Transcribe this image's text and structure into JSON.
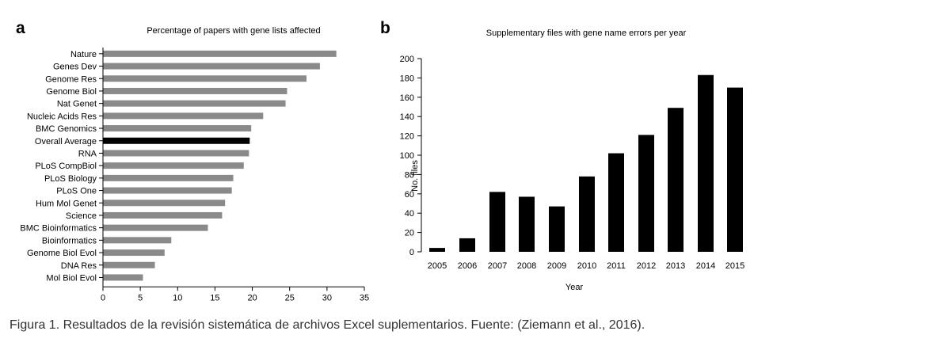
{
  "panel_labels": {
    "a": "a",
    "b": "b"
  },
  "caption": "Figura 1. Resultados de la revisión sistemática de archivos Excel suplementarios. Fuente: (Ziemann et al., 2016).",
  "colors": {
    "gray_bar": "#8a8a8a",
    "black_bar": "#000000",
    "caption_text": "#333333"
  },
  "chart_data": [
    {
      "type": "bar",
      "orientation": "horizontal",
      "title": "Percentage of papers with gene lists affected",
      "xlabel": "",
      "ylabel": "",
      "xlim": [
        0,
        35
      ],
      "xticks": [
        "0",
        "5",
        "10",
        "15",
        "20",
        "25",
        "30",
        "35"
      ],
      "categories": [
        "Nature",
        "Genes Dev",
        "Genome Res",
        "Genome Biol",
        "Nat Genet",
        "Nucleic Acids Res",
        "BMC Genomics",
        "Overall Average",
        "RNA",
        "PLoS CompBiol",
        "PLoS Biology",
        "PLoS One",
        "Hum Mol Genet",
        "Science",
        "BMC Bioinformatics",
        "Bioinformatics",
        "Genome Biol Evol",
        "DNA Res",
        "Mol Biol Evol"
      ],
      "values": [
        31.2,
        29.0,
        27.2,
        24.6,
        24.4,
        21.4,
        19.8,
        19.6,
        19.5,
        18.8,
        17.4,
        17.2,
        16.3,
        15.9,
        14.0,
        9.1,
        8.2,
        6.9,
        5.3
      ],
      "highlight": "Overall Average",
      "grid": false
    },
    {
      "type": "bar",
      "title": "Supplementary files with gene name errors per year",
      "xlabel": "Year",
      "ylabel": "No. files",
      "ylim": [
        0,
        200
      ],
      "yticks": [
        "0",
        "20",
        "40",
        "60",
        "80",
        "100",
        "120",
        "140",
        "160",
        "180",
        "200"
      ],
      "categories": [
        "2005",
        "2006",
        "2007",
        "2008",
        "2009",
        "2010",
        "2011",
        "2012",
        "2013",
        "2014",
        "2015"
      ],
      "values": [
        4,
        14,
        62,
        57,
        47,
        78,
        102,
        121,
        149,
        183,
        170
      ],
      "grid": false
    }
  ]
}
